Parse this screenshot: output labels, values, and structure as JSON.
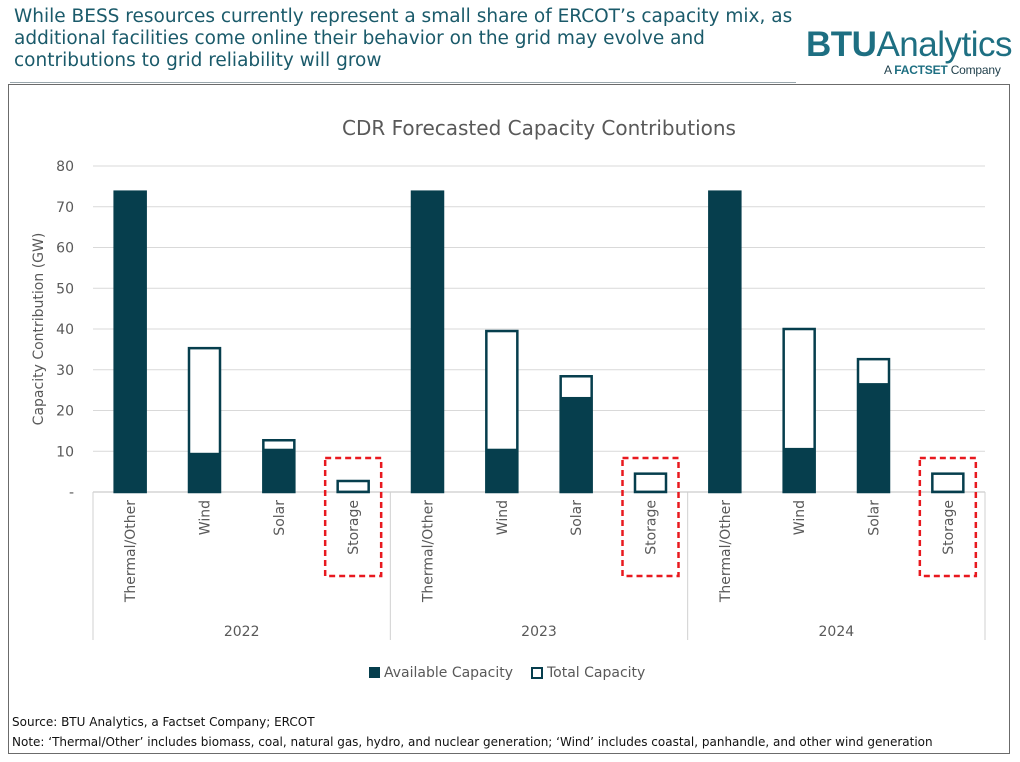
{
  "headline": "While BESS resources currently represent a small share of ERCOT’s capacity mix, as additional facilities come online their behavior on the grid may evolve and contributions to grid reliability will grow",
  "logo": {
    "brand_bold": "BTU",
    "brand_rest": "Analytics",
    "sub_prefix": "A ",
    "sub_brand": "FACTSET",
    "sub_suffix": " Company"
  },
  "footer": {
    "source": "Source: BTU Analytics, a Factset Company; ERCOT",
    "note": "Note: ‘Thermal/Other’ includes biomass, coal, natural gas, hydro, and nuclear generation; ‘Wind’ includes coastal, panhandle, and other wind generation"
  },
  "colors": {
    "available": "#063e4d",
    "total_outline": "#063e4d",
    "highlight": "#e8191f",
    "grid": "#d9d9d9"
  },
  "chart_data": {
    "type": "bar",
    "title": "CDR Forecasted Capacity Contributions",
    "ylabel": "Capacity Contribution (GW)",
    "xlabel": "",
    "ylim": [
      0,
      80
    ],
    "yticks": [
      0,
      10,
      20,
      30,
      40,
      50,
      60,
      70,
      80
    ],
    "ytick_labels": [
      "-",
      "10",
      "20",
      "30",
      "40",
      "50",
      "60",
      "70",
      "80"
    ],
    "grid": true,
    "legend_position": "bottom",
    "groups": [
      {
        "year": "2022",
        "categories": [
          "Thermal/Other",
          "Wind",
          "Solar",
          "Storage"
        ],
        "available": [
          73.7,
          9.5,
          10.5,
          0.2
        ],
        "total": [
          73.7,
          35.3,
          12.7,
          2.7
        ]
      },
      {
        "year": "2023",
        "categories": [
          "Thermal/Other",
          "Wind",
          "Solar",
          "Storage"
        ],
        "available": [
          73.7,
          10.5,
          23.2,
          0.2
        ],
        "total": [
          73.7,
          39.5,
          28.4,
          4.5
        ]
      },
      {
        "year": "2024",
        "categories": [
          "Thermal/Other",
          "Wind",
          "Solar",
          "Storage"
        ],
        "available": [
          73.7,
          10.7,
          26.6,
          0.2
        ],
        "total": [
          73.7,
          40.0,
          32.6,
          4.5
        ]
      }
    ],
    "series": [
      {
        "name": "Available Capacity",
        "style": "filled"
      },
      {
        "name": "Total Capacity",
        "style": "outline"
      }
    ],
    "highlighted_category": "Storage"
  }
}
